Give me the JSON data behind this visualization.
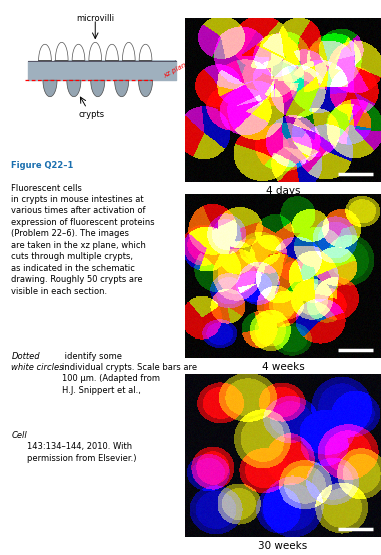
{
  "fig_width": 3.81,
  "fig_height": 5.55,
  "background": "#ffffff",
  "labels": [
    "4 days",
    "4 weeks",
    "30 weeks"
  ],
  "caption_color_bold": "#1a6faf",
  "caption_color_normal": "#000000",
  "schematic_label_microvilli": "microvilli",
  "schematic_label_crypts": "crypts",
  "image_4days": {
    "bg": "#000000",
    "n_cells": 30,
    "cell_colors": [
      "#ff0000",
      "#0000cc",
      "#cccc00",
      "#cc00cc",
      "#008800"
    ],
    "cell_size_range": [
      22,
      30
    ],
    "n_sectors_range": [
      3,
      6
    ],
    "seed": 10
  },
  "image_4weeks": {
    "bg": "#000000",
    "n_cells": 40,
    "cell_colors": [
      "#ee0000",
      "#0000cc",
      "#cccc00",
      "#ff6600",
      "#006600"
    ],
    "cell_size_range": [
      18,
      26
    ],
    "n_sectors_range": [
      1,
      2
    ],
    "seed": 20
  },
  "image_30weeks": {
    "bg": "#020208",
    "n_cells": 22,
    "cell_colors": [
      "#ee0000",
      "#0000aa",
      "#aaaa00"
    ],
    "cell_size_range": [
      22,
      32
    ],
    "n_sectors_range": [
      1,
      1
    ],
    "seed": 30
  }
}
